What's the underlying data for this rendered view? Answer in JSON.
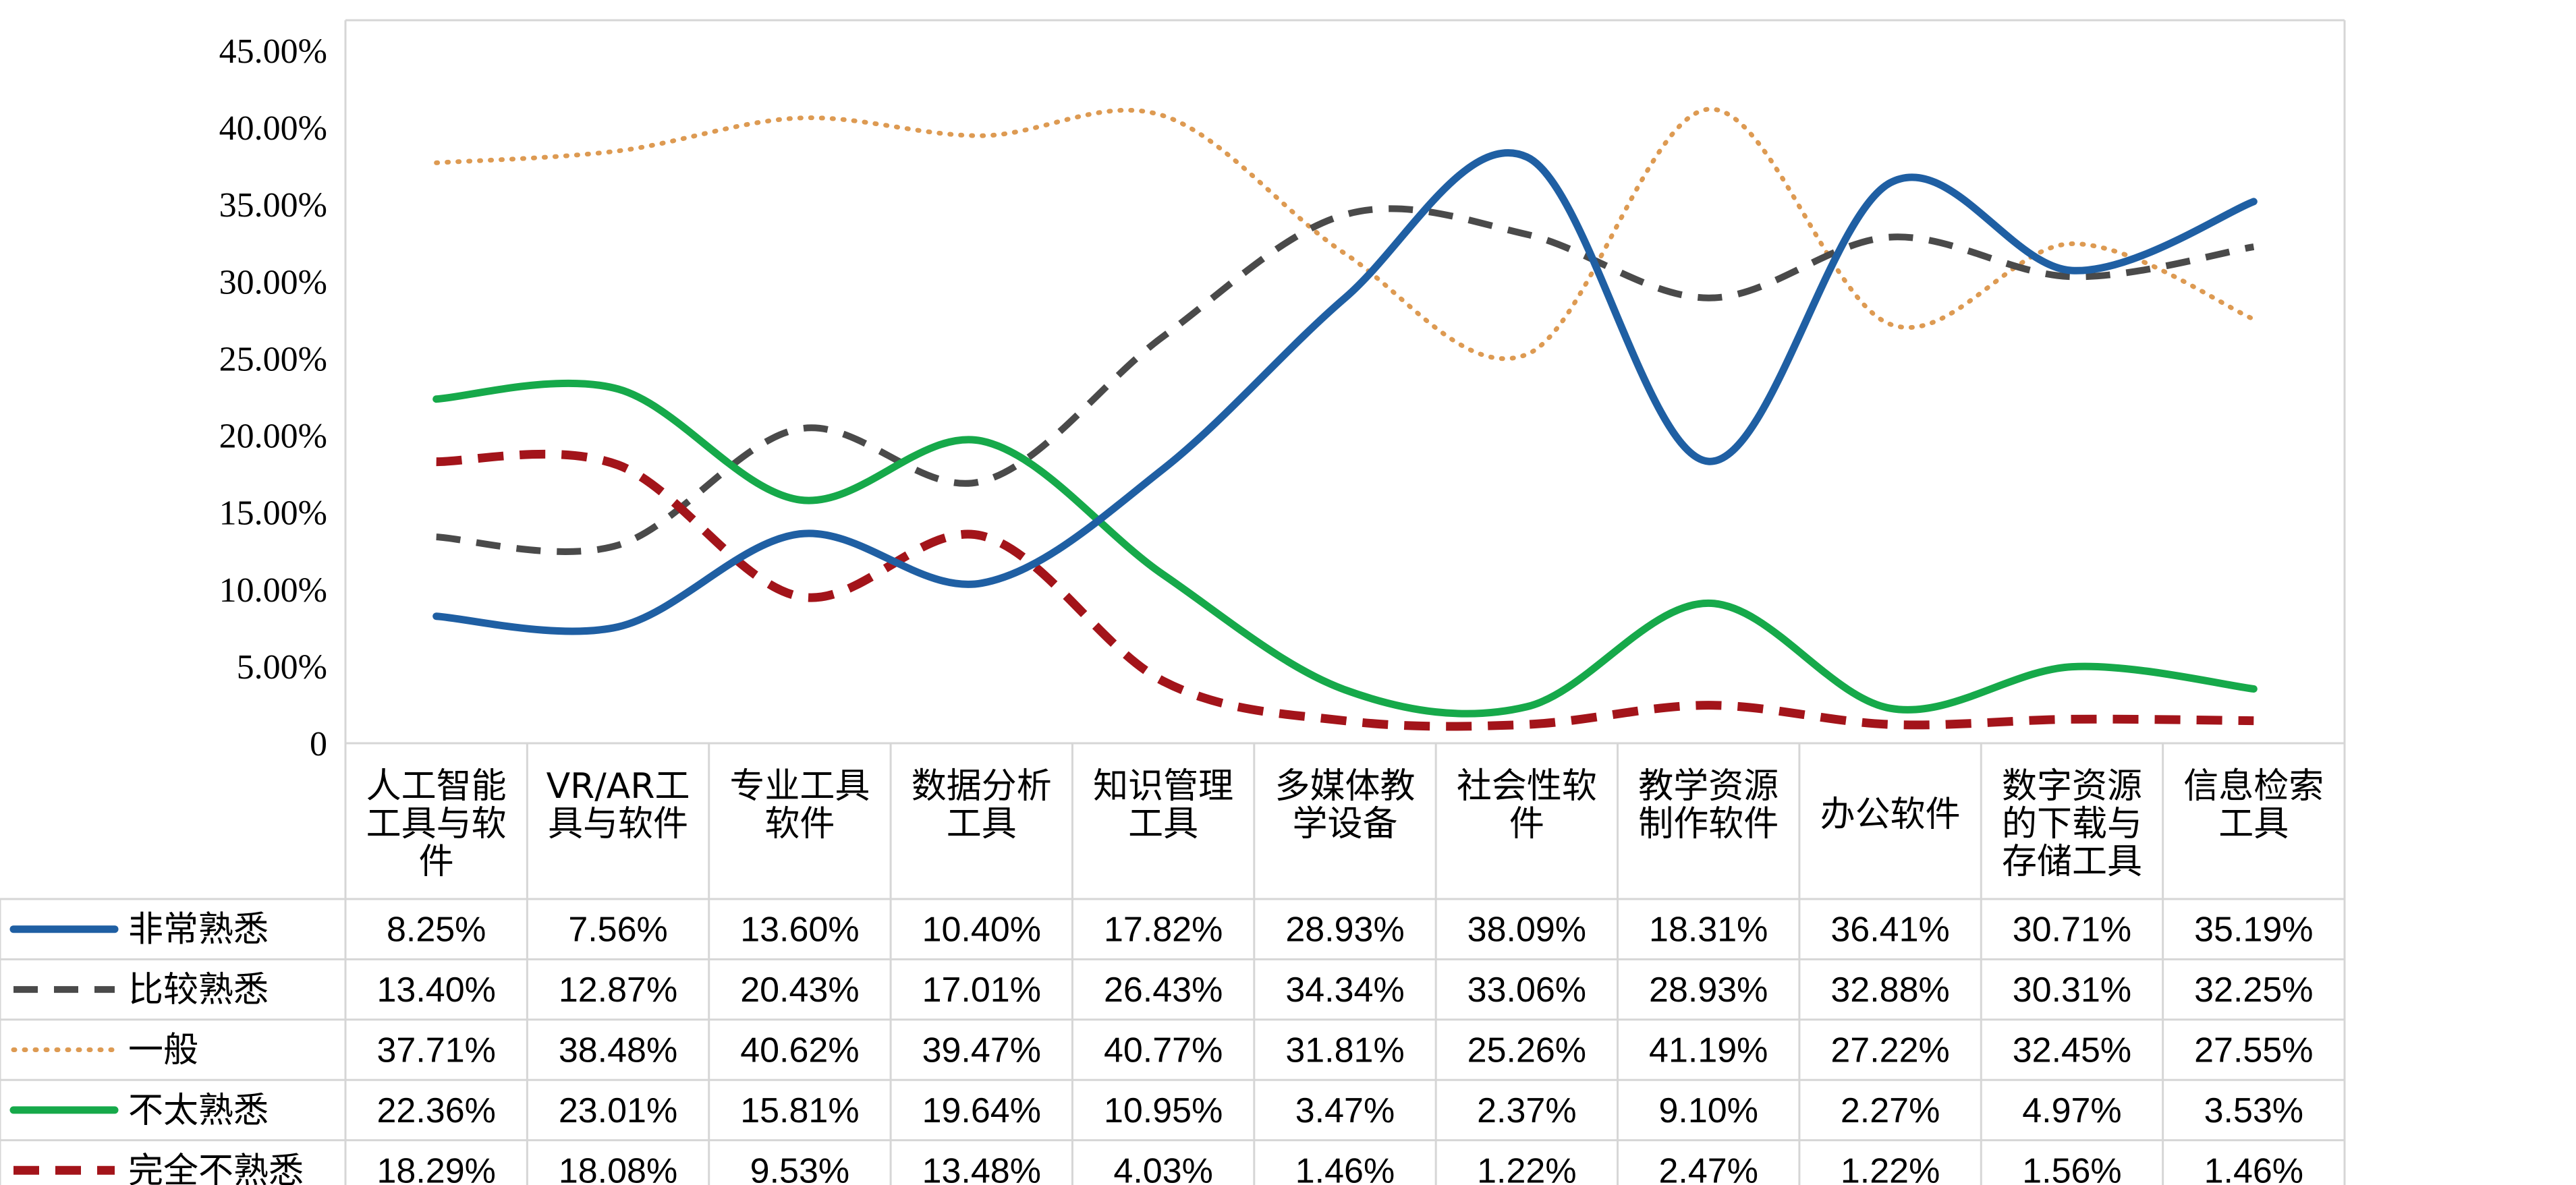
{
  "chart_data": {
    "type": "line",
    "y_tick_labels": [
      "0",
      "5.00%",
      "10.00%",
      "15.00%",
      "20.00%",
      "25.00%",
      "30.00%",
      "35.00%",
      "40.00%",
      "45.00%"
    ],
    "ylim": [
      0,
      45
    ],
    "grid": false,
    "legend": "data-table-rows",
    "categories": [
      [
        "人工智能",
        "工具与软",
        "件"
      ],
      [
        "VR/AR工",
        "具与软件"
      ],
      [
        "专业工具",
        "软件"
      ],
      [
        "数据分析",
        "工具"
      ],
      [
        "知识管理",
        "工具"
      ],
      [
        "多媒体教",
        "学设备"
      ],
      [
        "社会性软",
        "件"
      ],
      [
        "教学资源",
        "制作软件"
      ],
      [
        "办公软件"
      ],
      [
        "数字资源",
        "的下载与",
        "存储工具"
      ],
      [
        "信息检索",
        "工具"
      ]
    ],
    "series": [
      {
        "name": "非常熟悉",
        "color": "#1f5fa3",
        "style": "solid",
        "values": [
          8.25,
          7.56,
          13.6,
          10.4,
          17.82,
          28.93,
          38.09,
          18.31,
          36.41,
          30.71,
          35.19
        ],
        "labels": [
          "8.25%",
          "7.56%",
          "13.60%",
          "10.40%",
          "17.82%",
          "28.93%",
          "38.09%",
          "18.31%",
          "36.41%",
          "30.71%",
          "35.19%"
        ]
      },
      {
        "name": "比较熟悉",
        "color": "#4a4a4a",
        "style": "dashed",
        "values": [
          13.4,
          12.87,
          20.43,
          17.01,
          26.43,
          34.34,
          33.06,
          28.93,
          32.88,
          30.31,
          32.25
        ],
        "labels": [
          "13.40%",
          "12.87%",
          "20.43%",
          "17.01%",
          "26.43%",
          "34.34%",
          "33.06%",
          "28.93%",
          "32.88%",
          "30.31%",
          "32.25%"
        ]
      },
      {
        "name": "一般",
        "color": "#dd9a52",
        "style": "dotted",
        "values": [
          37.71,
          38.48,
          40.62,
          39.47,
          40.77,
          31.81,
          25.26,
          41.19,
          27.22,
          32.45,
          27.55
        ],
        "labels": [
          "37.71%",
          "38.48%",
          "40.62%",
          "39.47%",
          "40.77%",
          "31.81%",
          "25.26%",
          "41.19%",
          "27.22%",
          "32.45%",
          "27.55%"
        ]
      },
      {
        "name": "不太熟悉",
        "color": "#16a94a",
        "style": "solid",
        "values": [
          22.36,
          23.01,
          15.81,
          19.64,
          10.95,
          3.47,
          2.37,
          9.1,
          2.27,
          4.97,
          3.53
        ],
        "labels": [
          "22.36%",
          "23.01%",
          "15.81%",
          "19.64%",
          "10.95%",
          "3.47%",
          "2.37%",
          "9.10%",
          "2.27%",
          "4.97%",
          "3.53%"
        ]
      },
      {
        "name": "完全不熟悉",
        "color": "#a3141a",
        "style": "dashed-bold",
        "values": [
          18.29,
          18.08,
          9.53,
          13.48,
          4.03,
          1.46,
          1.22,
          2.47,
          1.22,
          1.56,
          1.46
        ],
        "labels": [
          "18.29%",
          "18.08%",
          "9.53%",
          "13.48%",
          "4.03%",
          "1.46%",
          "1.22%",
          "2.47%",
          "1.22%",
          "1.56%",
          "1.46%"
        ]
      }
    ]
  }
}
